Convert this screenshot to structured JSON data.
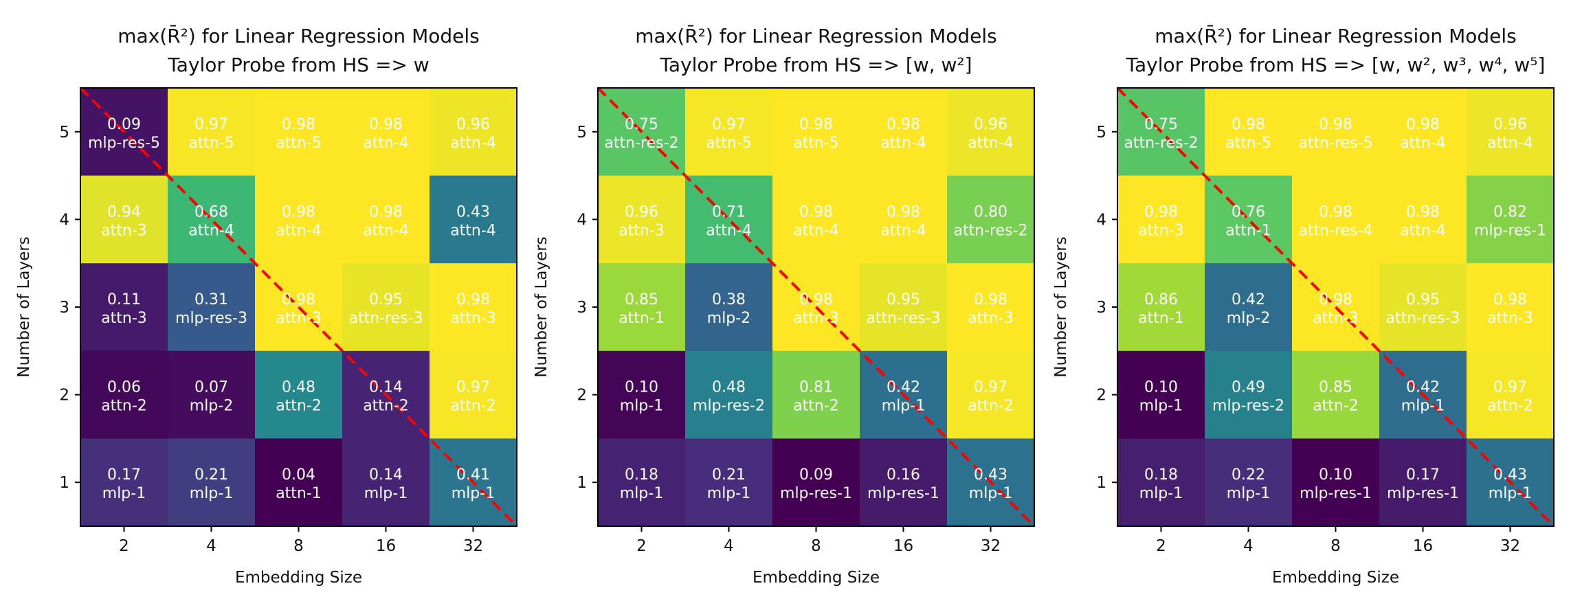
{
  "chart_data": [
    {
      "type": "heatmap",
      "title_lines": [
        "max(R̄²) for Linear Regression Models",
        "Taylor Probe from HS => w"
      ],
      "xlabel": "Embedding Size",
      "ylabel": "Number of Layers",
      "x_categories": [
        "2",
        "4",
        "8",
        "16",
        "32"
      ],
      "y_categories": [
        "5",
        "4",
        "3",
        "2",
        "1"
      ],
      "values": [
        [
          0.09,
          0.97,
          0.98,
          0.98,
          0.96
        ],
        [
          0.94,
          0.68,
          0.98,
          0.98,
          0.43
        ],
        [
          0.11,
          0.31,
          0.98,
          0.95,
          0.98
        ],
        [
          0.06,
          0.07,
          0.48,
          0.14,
          0.97
        ],
        [
          0.17,
          0.21,
          0.04,
          0.14,
          0.41
        ]
      ],
      "value_labels": [
        [
          "0.09",
          "0.97",
          "0.98",
          "0.98",
          "0.96"
        ],
        [
          "0.94",
          "0.68",
          "0.98",
          "0.98",
          "0.43"
        ],
        [
          "0.11",
          "0.31",
          "0.98",
          "0.95",
          "0.98"
        ],
        [
          "0.06",
          "0.07",
          "0.48",
          "0.14",
          "0.97"
        ],
        [
          "0.17",
          "0.21",
          "0.04",
          "0.14",
          "0.41"
        ]
      ],
      "layer_labels": [
        [
          "mlp-res-5",
          "attn-5",
          "attn-5",
          "attn-4",
          "attn-4"
        ],
        [
          "attn-3",
          "attn-4",
          "attn-4",
          "attn-4",
          "attn-4"
        ],
        [
          "attn-3",
          "mlp-res-3",
          "attn-3",
          "attn-res-3",
          "attn-3"
        ],
        [
          "attn-2",
          "mlp-2",
          "attn-2",
          "attn-2",
          "attn-2"
        ],
        [
          "mlp-1",
          "mlp-1",
          "attn-1",
          "mlp-1",
          "mlp-1"
        ]
      ],
      "colormap": "viridis",
      "vmin": 0.04,
      "vmax": 0.98,
      "diagonal_color": "#ff0000"
    },
    {
      "type": "heatmap",
      "title_lines": [
        "max(R̄²) for Linear Regression Models",
        "Taylor Probe from HS => [w, w²]"
      ],
      "xlabel": "Embedding Size",
      "ylabel": "Number of Layers",
      "x_categories": [
        "2",
        "4",
        "8",
        "16",
        "32"
      ],
      "y_categories": [
        "5",
        "4",
        "3",
        "2",
        "1"
      ],
      "values": [
        [
          0.75,
          0.97,
          0.98,
          0.98,
          0.96
        ],
        [
          0.96,
          0.71,
          0.98,
          0.98,
          0.8
        ],
        [
          0.85,
          0.38,
          0.98,
          0.95,
          0.98
        ],
        [
          0.1,
          0.48,
          0.81,
          0.42,
          0.97
        ],
        [
          0.18,
          0.21,
          0.09,
          0.16,
          0.43
        ]
      ],
      "value_labels": [
        [
          "0.75",
          "0.97",
          "0.98",
          "0.98",
          "0.96"
        ],
        [
          "0.96",
          "0.71",
          "0.98",
          "0.98",
          "0.80"
        ],
        [
          "0.85",
          "0.38",
          "0.98",
          "0.95",
          "0.98"
        ],
        [
          "0.10",
          "0.48",
          "0.81",
          "0.42",
          "0.97"
        ],
        [
          "0.18",
          "0.21",
          "0.09",
          "0.16",
          "0.43"
        ]
      ],
      "layer_labels": [
        [
          "attn-res-2",
          "attn-5",
          "attn-5",
          "attn-4",
          "attn-4"
        ],
        [
          "attn-3",
          "attn-4",
          "attn-4",
          "attn-4",
          "attn-res-2"
        ],
        [
          "attn-1",
          "mlp-2",
          "attn-3",
          "attn-res-3",
          "attn-3"
        ],
        [
          "mlp-1",
          "mlp-res-2",
          "attn-2",
          "mlp-1",
          "attn-2"
        ],
        [
          "mlp-1",
          "mlp-1",
          "mlp-res-1",
          "mlp-res-1",
          "mlp-1"
        ]
      ],
      "colormap": "viridis",
      "vmin": 0.09,
      "vmax": 0.98,
      "diagonal_color": "#ff0000"
    },
    {
      "type": "heatmap",
      "title_lines": [
        "max(R̄²) for Linear Regression Models",
        "Taylor Probe from HS => [w, w², w³, w⁴, w⁵]"
      ],
      "xlabel": "Embedding Size",
      "ylabel": "Number of Layers",
      "x_categories": [
        "2",
        "4",
        "8",
        "16",
        "32"
      ],
      "y_categories": [
        "5",
        "4",
        "3",
        "2",
        "1"
      ],
      "values": [
        [
          0.75,
          0.98,
          0.98,
          0.98,
          0.96
        ],
        [
          0.98,
          0.76,
          0.98,
          0.98,
          0.82
        ],
        [
          0.86,
          0.42,
          0.98,
          0.95,
          0.98
        ],
        [
          0.1,
          0.49,
          0.85,
          0.42,
          0.97
        ],
        [
          0.18,
          0.22,
          0.1,
          0.17,
          0.43
        ]
      ],
      "value_labels": [
        [
          "0.75",
          "0.98",
          "0.98",
          "0.98",
          "0.96"
        ],
        [
          "0.98",
          "0.76",
          "0.98",
          "0.98",
          "0.82"
        ],
        [
          "0.86",
          "0.42",
          "0.98",
          "0.95",
          "0.98"
        ],
        [
          "0.10",
          "0.49",
          "0.85",
          "0.42",
          "0.97"
        ],
        [
          "0.18",
          "0.22",
          "0.10",
          "0.17",
          "0.43"
        ]
      ],
      "layer_labels": [
        [
          "attn-res-2",
          "attn-5",
          "attn-res-5",
          "attn-4",
          "attn-4"
        ],
        [
          "attn-3",
          "attn-1",
          "attn-res-4",
          "attn-4",
          "mlp-res-1"
        ],
        [
          "attn-1",
          "mlp-2",
          "attn-3",
          "attn-res-3",
          "attn-3"
        ],
        [
          "mlp-1",
          "mlp-res-2",
          "attn-2",
          "mlp-1",
          "attn-2"
        ],
        [
          "mlp-1",
          "mlp-1",
          "mlp-res-1",
          "mlp-res-1",
          "mlp-1"
        ]
      ],
      "colormap": "viridis",
      "vmin": 0.1,
      "vmax": 0.98,
      "diagonal_color": "#ff0000"
    }
  ]
}
